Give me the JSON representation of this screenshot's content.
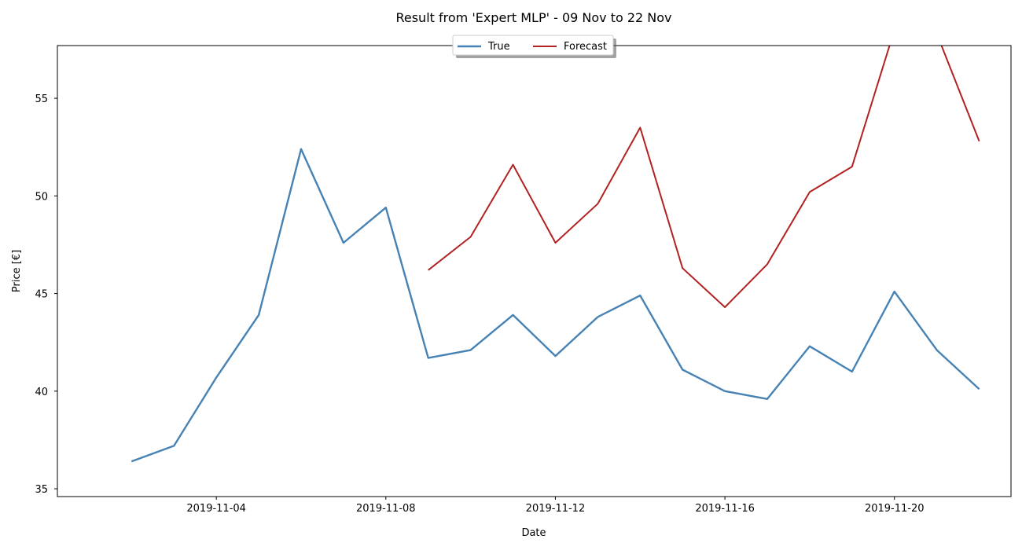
{
  "chart_data": {
    "type": "line",
    "title": "Result from 'Expert MLP' - 09 Nov to 22 Nov",
    "xlabel": "Date",
    "ylabel": "Price [€]",
    "xlim": [
      "2019-10-31T06:00",
      "2019-11-22T18:00"
    ],
    "ylim": [
      34.6,
      57.7
    ],
    "xticks": [
      "2019-11-04",
      "2019-11-08",
      "2019-11-12",
      "2019-11-16",
      "2019-11-20"
    ],
    "yticks": [
      35,
      40,
      45,
      50,
      55
    ],
    "grid": false,
    "legend_position": "upper center",
    "series": [
      {
        "name": "True",
        "color": "#4682b4",
        "x": [
          "2019-11-02",
          "2019-11-03",
          "2019-11-04",
          "2019-11-05",
          "2019-11-06",
          "2019-11-07",
          "2019-11-08",
          "2019-11-09",
          "2019-11-10",
          "2019-11-11",
          "2019-11-12",
          "2019-11-13",
          "2019-11-14",
          "2019-11-15",
          "2019-11-16",
          "2019-11-17",
          "2019-11-18",
          "2019-11-19",
          "2019-11-20",
          "2019-11-21",
          "2019-11-22"
        ],
        "values": [
          36.4,
          37.2,
          40.7,
          43.9,
          52.4,
          47.6,
          49.4,
          41.7,
          42.1,
          43.9,
          41.8,
          43.8,
          44.9,
          41.1,
          40.0,
          39.6,
          42.3,
          41.0,
          45.1,
          42.1,
          40.1
        ]
      },
      {
        "name": "Forecast",
        "color": "#b22222",
        "x": [
          "2019-11-09",
          "2019-11-10",
          "2019-11-11",
          "2019-11-12",
          "2019-11-13",
          "2019-11-14",
          "2019-11-15",
          "2019-11-16",
          "2019-11-17",
          "2019-11-18",
          "2019-11-19",
          "2019-11-20",
          "2019-11-21",
          "2019-11-22"
        ],
        "values": [
          46.2,
          47.9,
          51.6,
          47.6,
          49.6,
          53.5,
          46.3,
          44.3,
          46.5,
          50.2,
          51.5,
          58.5,
          58.3,
          52.8
        ]
      }
    ]
  }
}
